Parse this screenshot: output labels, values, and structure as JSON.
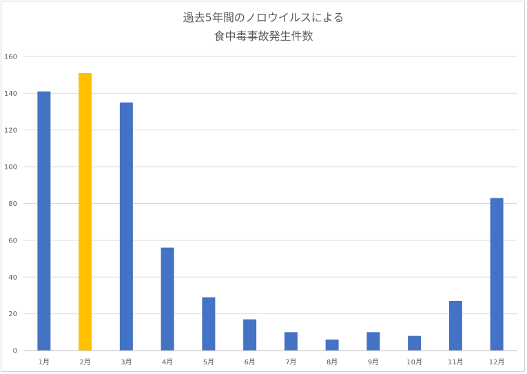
{
  "chart_data": {
    "type": "bar",
    "title_lines": [
      "過去5年間のノロウイルスによる",
      "食中毒事故発生件数"
    ],
    "categories": [
      "1月",
      "2月",
      "3月",
      "4月",
      "5月",
      "6月",
      "7月",
      "8月",
      "9月",
      "10月",
      "11月",
      "12月"
    ],
    "values": [
      141,
      151,
      135,
      56,
      29,
      17,
      10,
      6,
      10,
      8,
      27,
      83
    ],
    "highlight_index": 1,
    "ylim": [
      0,
      160
    ],
    "yticks": [
      0,
      20,
      40,
      60,
      80,
      100,
      120,
      140,
      160
    ],
    "grid": true,
    "xlabel": "",
    "ylabel": "",
    "colors": {
      "bar": "#4472C4",
      "highlight": "#FFC000",
      "grid": "#D9D9D9",
      "axis": "#BFBFBF"
    }
  }
}
